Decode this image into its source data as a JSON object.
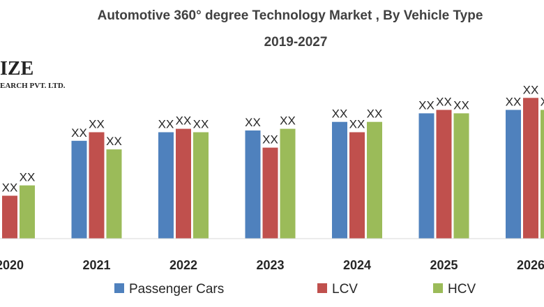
{
  "chart_data": {
    "type": "bar",
    "title": "Automotive 360° degree Technology Market , By Vehicle Type",
    "subtitle": "2019-2027",
    "categories": [
      "2020",
      "2021",
      "2022",
      "2023",
      "2024",
      "2025",
      "2026"
    ],
    "series": [
      {
        "name": "Passenger Cars",
        "color": "#4f81bd",
        "values": [
          null,
          57,
          62,
          63,
          68,
          73,
          75
        ]
      },
      {
        "name": "LCV",
        "color": "#c0504d",
        "values": [
          25,
          62,
          64,
          53,
          62,
          75,
          82
        ]
      },
      {
        "name": "HCV",
        "color": "#9bbb59",
        "values": [
          31,
          52,
          62,
          64,
          68,
          73,
          75
        ]
      }
    ],
    "data_label": "XX",
    "ylim": [
      0,
      100
    ],
    "legend": "bottom",
    "grid": false
  },
  "watermark": {
    "line1": "IZE",
    "line2": "EARCH PVT. LTD."
  }
}
